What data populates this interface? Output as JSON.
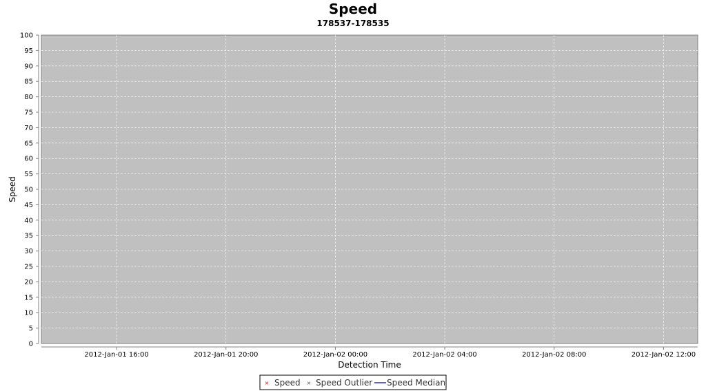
{
  "chart_data": {
    "type": "scatter",
    "title": "Speed",
    "subtitle": "178537-178535",
    "xlabel": "Detection Time",
    "ylabel": "Speed",
    "ylim": [
      0,
      100
    ],
    "y_ticks": [
      0,
      5,
      10,
      15,
      20,
      25,
      30,
      35,
      40,
      45,
      50,
      55,
      60,
      65,
      70,
      75,
      80,
      85,
      90,
      95,
      100
    ],
    "xlim": [
      "2012-01-01T13:15",
      "2012-01-02T13:15"
    ],
    "x_ticks": [
      {
        "value": "2012-01-01T16:00",
        "label": "2012-Jan-01 16:00"
      },
      {
        "value": "2012-01-01T20:00",
        "label": "2012-Jan-01 20:00"
      },
      {
        "value": "2012-01-02T00:00",
        "label": "2012-Jan-02 00:00"
      },
      {
        "value": "2012-01-02T04:00",
        "label": "2012-Jan-02 04:00"
      },
      {
        "value": "2012-01-02T08:00",
        "label": "2012-Jan-02 08:00"
      },
      {
        "value": "2012-01-02T12:00",
        "label": "2012-Jan-02 12:00"
      }
    ],
    "grid": true,
    "plot_background": "#c0c0c0",
    "gridline_color": "#ffffff",
    "legend_position": "bottom-center",
    "series": [
      {
        "name": "Speed",
        "marker": "x",
        "color": "#ff0000",
        "values": []
      },
      {
        "name": "Speed Outlier",
        "marker": "x",
        "color": "#555555",
        "values": []
      },
      {
        "name": "Speed Median",
        "marker": "line",
        "color": "#0000aa",
        "values": []
      }
    ]
  }
}
